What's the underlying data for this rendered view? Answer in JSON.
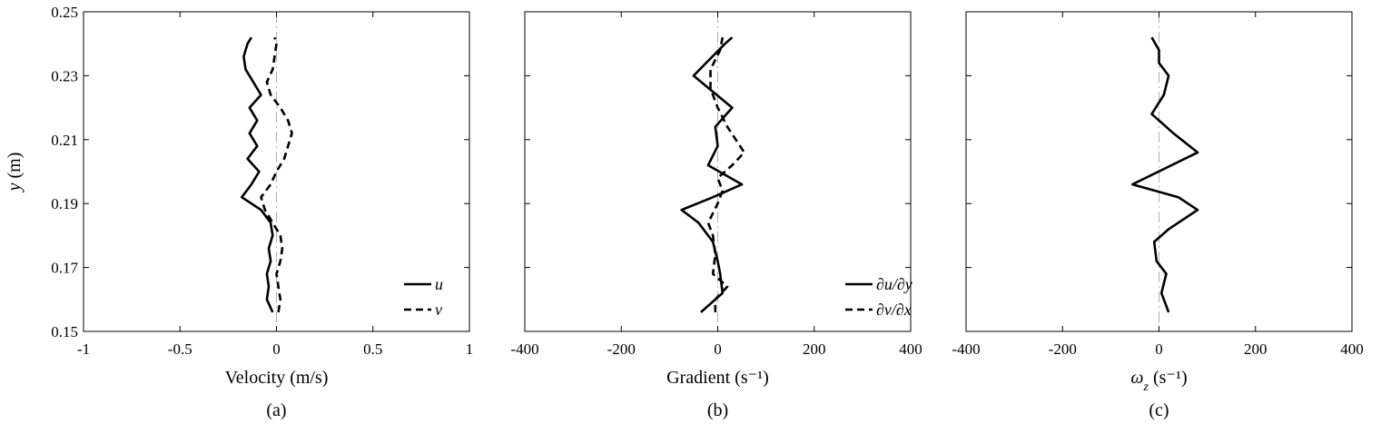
{
  "y_axis": {
    "label_var": "y",
    "label_unit": " (m)",
    "ticks": [
      "0.15",
      "0.17",
      "0.19",
      "0.21",
      "0.23",
      "0.25"
    ]
  },
  "chart_data": [
    {
      "type": "line",
      "caption": "(a)",
      "xlabel": "Velocity (m/s)",
      "ylabel": "y (m)",
      "xlim": [
        -1,
        1
      ],
      "ylim": [
        0.15,
        0.25
      ],
      "xticks": [
        "-1",
        "-0.5",
        "0",
        "0.5",
        "1"
      ],
      "x_tick_values": [
        -1,
        -0.5,
        0,
        0.5,
        1
      ],
      "zero_reference_line": true,
      "series": [
        {
          "name": "u",
          "style": "solid",
          "points": [
            [
              -0.02,
              0.156
            ],
            [
              -0.05,
              0.16
            ],
            [
              -0.04,
              0.164
            ],
            [
              -0.05,
              0.168
            ],
            [
              -0.03,
              0.172
            ],
            [
              -0.04,
              0.176
            ],
            [
              -0.02,
              0.18
            ],
            [
              -0.03,
              0.184
            ],
            [
              -0.08,
              0.188
            ],
            [
              -0.18,
              0.192
            ],
            [
              -0.13,
              0.196
            ],
            [
              -0.09,
              0.2
            ],
            [
              -0.15,
              0.204
            ],
            [
              -0.1,
              0.208
            ],
            [
              -0.14,
              0.212
            ],
            [
              -0.1,
              0.216
            ],
            [
              -0.14,
              0.22
            ],
            [
              -0.08,
              0.224
            ],
            [
              -0.12,
              0.228
            ],
            [
              -0.16,
              0.232
            ],
            [
              -0.17,
              0.236
            ],
            [
              -0.15,
              0.24
            ],
            [
              -0.13,
              0.242
            ]
          ]
        },
        {
          "name": "v",
          "style": "dashed",
          "points": [
            [
              0.01,
              0.156
            ],
            [
              0.02,
              0.16
            ],
            [
              0.01,
              0.164
            ],
            [
              0.0,
              0.168
            ],
            [
              0.02,
              0.172
            ],
            [
              0.03,
              0.176
            ],
            [
              0.02,
              0.18
            ],
            [
              -0.02,
              0.184
            ],
            [
              -0.06,
              0.188
            ],
            [
              -0.08,
              0.192
            ],
            [
              -0.03,
              0.196
            ],
            [
              0.0,
              0.2
            ],
            [
              0.04,
              0.204
            ],
            [
              0.06,
              0.208
            ],
            [
              0.08,
              0.212
            ],
            [
              0.06,
              0.216
            ],
            [
              0.02,
              0.22
            ],
            [
              -0.03,
              0.224
            ],
            [
              -0.05,
              0.228
            ],
            [
              -0.02,
              0.232
            ],
            [
              -0.01,
              0.236
            ],
            [
              0.0,
              0.24
            ],
            [
              -0.01,
              0.242
            ]
          ]
        }
      ]
    },
    {
      "type": "line",
      "caption": "(b)",
      "xlabel": "Gradient",
      "xunit": "(s⁻¹)",
      "ylabel": "y (m)",
      "xlim": [
        -400,
        400
      ],
      "ylim": [
        0.15,
        0.25
      ],
      "xticks": [
        "-400",
        "-200",
        "0",
        "200",
        "400"
      ],
      "x_tick_values": [
        -400,
        -200,
        0,
        200,
        400
      ],
      "zero_reference_line": true,
      "series": [
        {
          "name": "∂u/∂y",
          "style": "solid",
          "points": [
            [
              -35,
              0.156
            ],
            [
              10,
              0.162
            ],
            [
              5,
              0.168
            ],
            [
              0,
              0.172
            ],
            [
              -10,
              0.178
            ],
            [
              -40,
              0.184
            ],
            [
              -75,
              0.188
            ],
            [
              -10,
              0.192
            ],
            [
              50,
              0.196
            ],
            [
              -20,
              0.202
            ],
            [
              0,
              0.208
            ],
            [
              -5,
              0.214
            ],
            [
              30,
              0.22
            ],
            [
              -50,
              0.23
            ],
            [
              15,
              0.24
            ],
            [
              30,
              0.242
            ]
          ]
        },
        {
          "name": "∂v/∂x",
          "style": "dashed",
          "points": [
            [
              -5,
              0.156
            ],
            [
              -5,
              0.16
            ],
            [
              20,
              0.164
            ],
            [
              -10,
              0.168
            ],
            [
              -5,
              0.174
            ],
            [
              -10,
              0.18
            ],
            [
              -20,
              0.184
            ],
            [
              0,
              0.19
            ],
            [
              10,
              0.194
            ],
            [
              0,
              0.198
            ],
            [
              30,
              0.202
            ],
            [
              55,
              0.206
            ],
            [
              20,
              0.214
            ],
            [
              0,
              0.22
            ],
            [
              -15,
              0.226
            ],
            [
              -15,
              0.232
            ],
            [
              5,
              0.238
            ],
            [
              10,
              0.242
            ]
          ]
        }
      ]
    },
    {
      "type": "line",
      "caption": "(c)",
      "xlabel": "ω_z",
      "xunit": "(s⁻¹)",
      "ylabel": "y (m)",
      "xlim": [
        -400,
        400
      ],
      "ylim": [
        0.15,
        0.25
      ],
      "xticks": [
        "-400",
        "-200",
        "0",
        "200",
        "400"
      ],
      "x_tick_values": [
        -400,
        -200,
        0,
        200,
        400
      ],
      "zero_reference_line": true,
      "series": [
        {
          "name": "ω_z",
          "style": "solid",
          "points": [
            [
              20,
              0.156
            ],
            [
              5,
              0.162
            ],
            [
              15,
              0.168
            ],
            [
              -5,
              0.172
            ],
            [
              -10,
              0.178
            ],
            [
              20,
              0.182
            ],
            [
              80,
              0.188
            ],
            [
              40,
              0.192
            ],
            [
              -55,
              0.196
            ],
            [
              80,
              0.206
            ],
            [
              30,
              0.212
            ],
            [
              -15,
              0.218
            ],
            [
              10,
              0.224
            ],
            [
              20,
              0.23
            ],
            [
              0,
              0.234
            ],
            [
              0,
              0.238
            ],
            [
              -15,
              0.242
            ]
          ]
        }
      ]
    }
  ]
}
